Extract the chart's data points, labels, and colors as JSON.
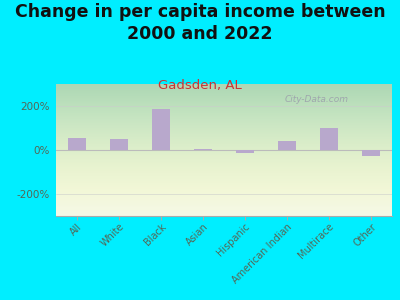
{
  "title": "Change in per capita income between\n2000 and 2022",
  "subtitle": "Gadsden, AL",
  "categories": [
    "All",
    "White",
    "Black",
    "Asian",
    "Hispanic",
    "American Indian",
    "Multirace",
    "Other"
  ],
  "values": [
    55,
    48,
    185,
    3,
    -12,
    43,
    98,
    -28
  ],
  "bar_color": "#b8a8cc",
  "background_outer": "#00eeff",
  "title_color": "#111111",
  "subtitle_color": "#cc3333",
  "tick_label_color": "#556655",
  "ylim": [
    -300,
    300
  ],
  "yticks": [
    -200,
    0,
    200
  ],
  "ytick_labels": [
    "-200%",
    "0%",
    "200%"
  ],
  "watermark": "City-Data.com",
  "title_fontsize": 12.5,
  "subtitle_fontsize": 9.5
}
